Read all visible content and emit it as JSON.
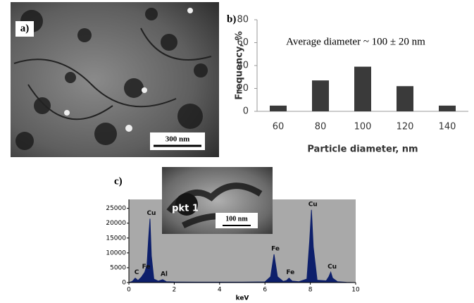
{
  "images": [
    {
      "label": "a)",
      "scale_bar": "300 nm"
    },
    {
      "label": "pkt 1",
      "scale_bar": "100 nm"
    }
  ],
  "chart_data": [
    {
      "type": "bar",
      "panel_label": "b)",
      "annotation": "Average  diameter ~ 100 ± 20 nm",
      "ylabel": "Frequency, %",
      "xlabel": "Particle diameter, nm",
      "categories": [
        "60",
        "80",
        "100",
        "120",
        "140"
      ],
      "values": [
        5,
        27,
        39,
        22,
        5
      ],
      "color": "#3a3a3a",
      "ylim": [
        0,
        80
      ],
      "yticks": [
        0,
        20,
        40,
        60,
        80
      ]
    },
    {
      "type": "area",
      "panel_label": "c)",
      "xlabel": "keV",
      "color": "#0d1f6b",
      "background": "#a9a9a9",
      "x": [
        0,
        0.15,
        0.28,
        0.4,
        0.55,
        0.7,
        0.8,
        0.87,
        0.93,
        0.99,
        1.1,
        1.3,
        1.49,
        1.65,
        2,
        3,
        4,
        5,
        6,
        6.25,
        6.4,
        6.55,
        6.8,
        6.95,
        7.06,
        7.2,
        7.5,
        7.85,
        7.97,
        8.05,
        8.13,
        8.3,
        8.7,
        8.82,
        8.9,
        8.98,
        9.2,
        9.6,
        10
      ],
      "values": [
        0,
        400,
        1500,
        700,
        1800,
        3500,
        6000,
        15000,
        21500,
        9000,
        1200,
        500,
        1000,
        300,
        200,
        150,
        150,
        150,
        250,
        2000,
        9500,
        2000,
        400,
        700,
        1500,
        500,
        300,
        1200,
        14000,
        24500,
        12000,
        800,
        600,
        2000,
        3500,
        1500,
        300,
        100,
        0
      ],
      "xlim": [
        0,
        10
      ],
      "xticks": [
        0,
        2,
        4,
        6,
        8,
        10
      ],
      "ylim": [
        0,
        28000
      ],
      "yticks": [
        0,
        5000,
        10000,
        15000,
        20000,
        25000
      ],
      "peak_labels": [
        {
          "label": "C",
          "x": 0.28,
          "y": 1500
        },
        {
          "label": "Fe",
          "x": 0.7,
          "y": 3500
        },
        {
          "label": "Cu",
          "x": 0.93,
          "y": 21500
        },
        {
          "label": "Al",
          "x": 1.49,
          "y": 1000
        },
        {
          "label": "Fe",
          "x": 6.4,
          "y": 9500
        },
        {
          "label": "Fe",
          "x": 7.06,
          "y": 1500
        },
        {
          "label": "Cu",
          "x": 8.05,
          "y": 24500
        },
        {
          "label": "Cu",
          "x": 8.9,
          "y": 3500
        }
      ]
    }
  ]
}
